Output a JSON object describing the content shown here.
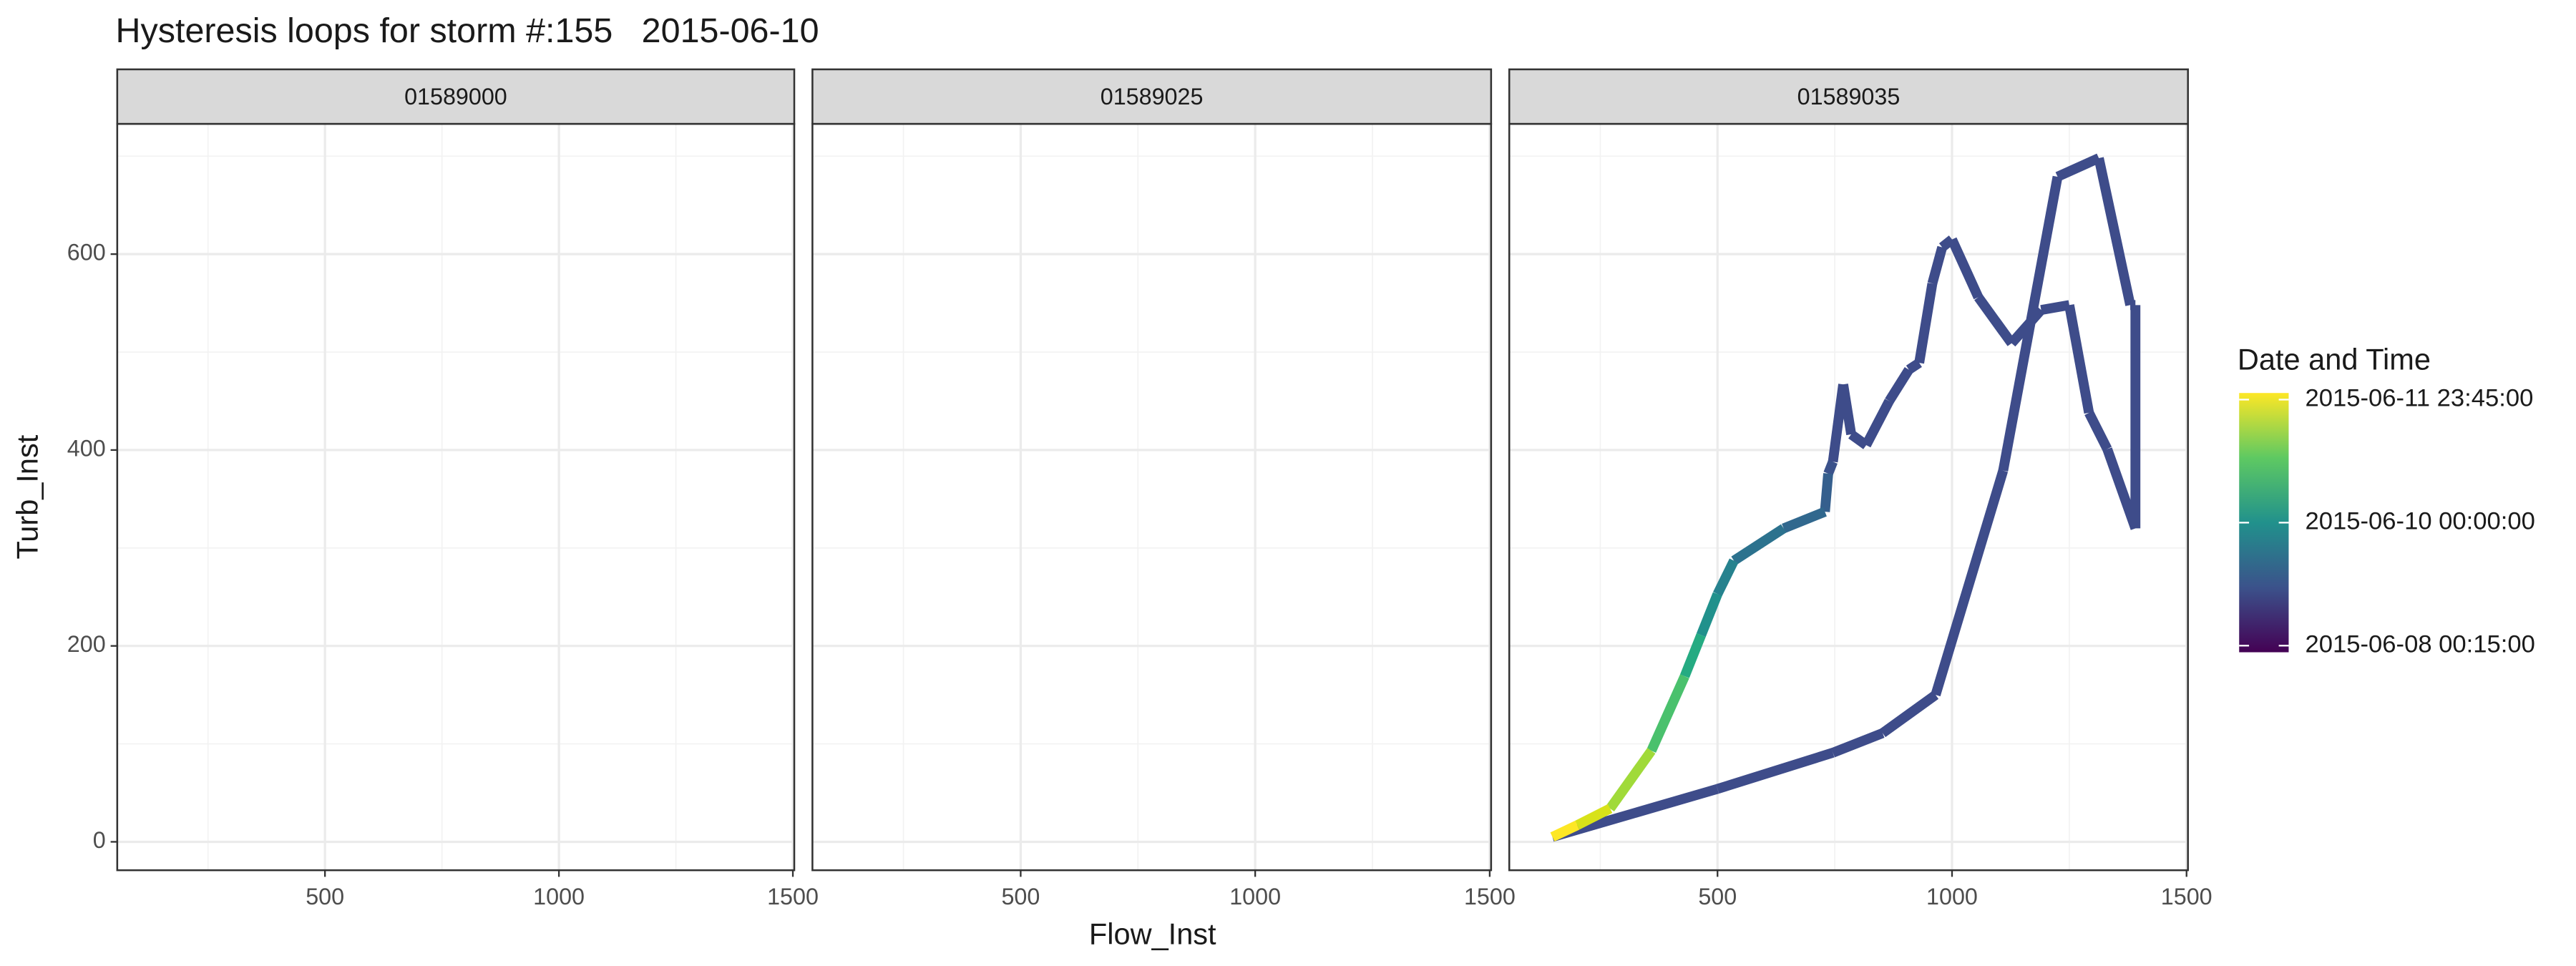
{
  "chart_data": {
    "type": "line",
    "title": "Hysteresis loops for storm #:155   2015-06-10",
    "x_label": "Flow_Inst",
    "y_label": "Turb_Inst",
    "facets": [
      "01589000",
      "01589025",
      "01589035"
    ],
    "xlim": [
      56,
      1503
    ],
    "xticks": [
      500,
      1000,
      1500
    ],
    "x_minor_ticks": [
      250,
      750,
      1250
    ],
    "ylim": [
      -29,
      733
    ],
    "yticks": [
      0,
      200,
      400,
      600
    ],
    "y_minor_ticks": [
      100,
      300,
      500,
      700
    ],
    "grid": true,
    "series": [
      {
        "facet": "01589035",
        "x": [
          148,
          500,
          746,
          852,
          965,
          1109,
          1225,
          1313,
          1380,
          1391,
          1391,
          1331,
          1292,
          1250,
          1190,
          1127,
          1056,
          1000,
          979,
          958,
          930,
          908,
          866,
          817,
          785,
          768,
          746,
          736,
          729,
          641,
          535,
          500,
          465,
          430,
          359,
          271,
          201,
          148
        ],
        "values": [
          5,
          54,
          91,
          111,
          150,
          379,
          679,
          698,
          548,
          548,
          320,
          401,
          438,
          548,
          543,
          509,
          556,
          615,
          607,
          570,
          489,
          482,
          450,
          405,
          416,
          467,
          388,
          376,
          337,
          320,
          287,
          253,
          211,
          169,
          93,
          34,
          17,
          5
        ],
        "colors": [
          "#46337e",
          "#3e4c8a",
          "#3e4c8a",
          "#3e4c8a",
          "#3e4c8a",
          "#3e4c8a",
          "#3e4c8a",
          "#3e4c8a",
          "#3e4c8a",
          "#3e4c8a",
          "#3e4c8a",
          "#3e4c8a",
          "#3e4c8a",
          "#3e4c8a",
          "#3e4c8a",
          "#3e4c8a",
          "#3e4c8a",
          "#3e4c8a",
          "#3e4c8a",
          "#3e4c8a",
          "#3e4c8a",
          "#3e4c8a",
          "#3e4c8a",
          "#3e4c8a",
          "#3e4c8a",
          "#3e4c8a",
          "#3e4c8a",
          "#3b528b",
          "#355f8d",
          "#31688e",
          "#2c728e",
          "#26828e",
          "#21918c",
          "#25ab82",
          "#4ac16d",
          "#a0da39",
          "#d8e219",
          "#fde725"
        ]
      }
    ],
    "colorbar": {
      "title": "Date and Time",
      "labels": [
        "2015-06-11 23:45:00",
        "2015-06-10 00:00:00",
        "2015-06-08 00:15:00"
      ],
      "colors": [
        "#fde725",
        "#5ec962",
        "#21918c",
        "#3b528b",
        "#440154"
      ]
    },
    "line_width": 6
  }
}
